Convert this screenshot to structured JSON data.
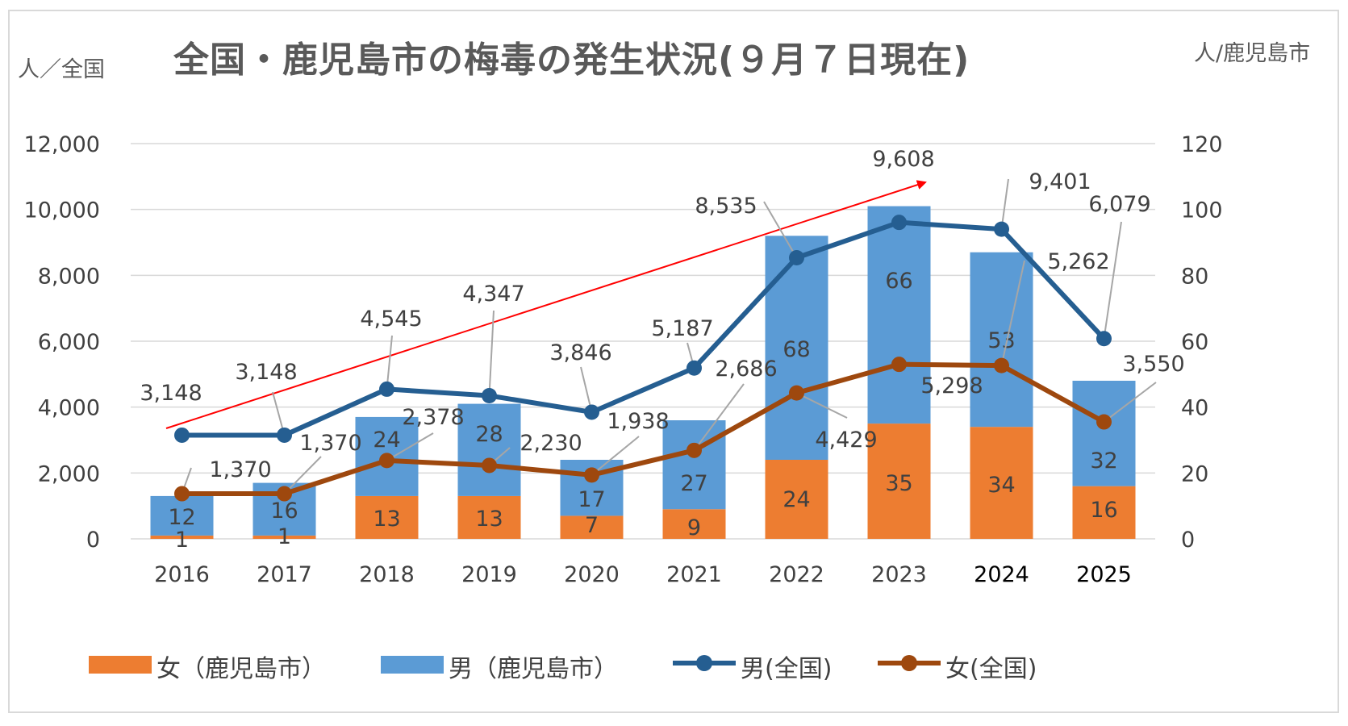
{
  "title": "全国・鹿児島市の梅毒の発生状況(９月７日現在)",
  "unit_left": "人／全国",
  "unit_right": "人/鹿児島市",
  "colors": {
    "female_kagoshima": "#ed7d31",
    "male_kagoshima": "#5b9bd5",
    "male_national": "#255e91",
    "female_national": "#9e480e",
    "trend_arrow": "#ff0000",
    "grid": "#d9d9d9",
    "text": "#404040"
  },
  "legend": [
    {
      "key": "female_kagoshima",
      "label": "女（鹿児島市）",
      "kind": "bar"
    },
    {
      "key": "male_kagoshima",
      "label": "男（鹿児島市）",
      "kind": "bar"
    },
    {
      "key": "male_national",
      "label": "男(全国)",
      "kind": "line"
    },
    {
      "key": "female_national",
      "label": "女(全国)",
      "kind": "line"
    }
  ],
  "chart_data": {
    "type": "bar",
    "categories": [
      "2016",
      "2017",
      "2018",
      "2019",
      "2020",
      "2021",
      "2022",
      "2023",
      "2024",
      "2025"
    ],
    "series": [
      {
        "name": "女（鹿児島市）",
        "type": "stacked-bar",
        "axis": "right",
        "values": [
          1,
          1,
          13,
          13,
          7,
          9,
          24,
          35,
          34,
          16
        ]
      },
      {
        "name": "男（鹿児島市）",
        "type": "stacked-bar",
        "axis": "right",
        "values": [
          12,
          16,
          24,
          28,
          17,
          27,
          68,
          66,
          53,
          32
        ]
      },
      {
        "name": "男(全国)",
        "type": "line",
        "axis": "left",
        "values": [
          3148,
          3148,
          4545,
          4347,
          3846,
          5187,
          8535,
          9608,
          9401,
          6079
        ]
      },
      {
        "name": "女(全国)",
        "type": "line",
        "axis": "left",
        "values": [
          1370,
          1370,
          2378,
          2230,
          1938,
          2686,
          4429,
          5298,
          5262,
          3550
        ]
      }
    ],
    "male_national_labels": [
      "3,148",
      "3,148",
      "4,545",
      "4,347",
      "3,846",
      "5,187",
      "8,535",
      "9,608",
      "9,401",
      "6,079"
    ],
    "female_national_labels": [
      "1,370",
      "1,370",
      "2,378",
      "2,230",
      "1,938",
      "2,686",
      "4,429",
      "5,298",
      "5,262",
      "3,550"
    ],
    "y_left_ticks": [
      "0",
      "2,000",
      "4,000",
      "6,000",
      "8,000",
      "10,000",
      "12,000"
    ],
    "y_right_ticks": [
      "0",
      "20",
      "40",
      "60",
      "80",
      "100",
      "120"
    ],
    "ylim_left": [
      0,
      12000
    ],
    "ylim_right": [
      0,
      120
    ],
    "grid": true,
    "legend_position": "bottom",
    "annotation": "increasing trend arrow from 2016 to 2023"
  }
}
